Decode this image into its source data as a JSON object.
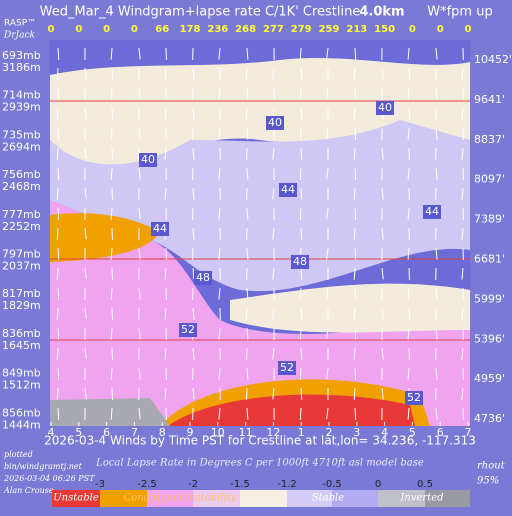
{
  "header": {
    "title": "Wed_Mar_4 Windgram+lapse rate C/1K'  Crestline",
    "crest": "4.0km",
    "unit": "W*fpm up",
    "brand": "RASP™",
    "author": "DrJack"
  },
  "chart_data": {
    "type": "windgram",
    "wstar": [
      0,
      0,
      0,
      0,
      66,
      178,
      236,
      268,
      277,
      279,
      259,
      213,
      150,
      0,
      0,
      0
    ],
    "categories": [
      "4",
      "5",
      "6",
      "7",
      "8",
      "9",
      "10",
      "11",
      "12",
      "1",
      "2",
      "3",
      "4",
      "5",
      "6",
      "7"
    ],
    "x_label": "2026-03-4 Winds by Time PST for Crestline at lat,lon= 34.236, -117.313",
    "levels_left": [
      {
        "mb": "693mb",
        "m": "3186m"
      },
      {
        "mb": "714mb",
        "m": "2939m"
      },
      {
        "mb": "735mb",
        "m": "2694m"
      },
      {
        "mb": "756mb",
        "m": "2468m"
      },
      {
        "mb": "777mb",
        "m": "2252m"
      },
      {
        "mb": "797mb",
        "m": "2037m"
      },
      {
        "mb": "817mb",
        "m": "1829m"
      },
      {
        "mb": "836mb",
        "m": "1645m"
      },
      {
        "mb": "849mb",
        "m": "1512m"
      },
      {
        "mb": "856mb",
        "m": "1444m"
      }
    ],
    "levels_right": [
      "10452'",
      "9641'",
      "8837'",
      "8097'",
      "7389'",
      "6681'",
      "5999'",
      "5396'",
      "4959'",
      "4736'"
    ],
    "contour_labels": [
      40,
      40,
      40,
      44,
      44,
      44,
      48,
      48,
      52,
      52,
      52
    ],
    "colorbar": {
      "title": "Local Lapse Rate in Degrees C per 1000ft  4710ft asl model base",
      "ticks": [
        -3,
        -2.5,
        -2,
        -1.5,
        -1.2,
        -0.5,
        0,
        0.5
      ],
      "colors": [
        "#e83838",
        "#f0a000",
        "#f2a4f2",
        "#ecccf2",
        "#f5eee2",
        "#d4ccf6",
        "#b4acf2",
        "#c0c0c8",
        "#9a9aa2"
      ],
      "regions": [
        "Unstable",
        "Conditional Instability",
        "Stable",
        "Inverted"
      ]
    }
  },
  "footer": {
    "plotted": "plotted",
    "site": "bin/windgramtj.net",
    "stamp": "2026-03-04 06:26 PST",
    "user": "Alan Crouse",
    "rh": "rhout",
    "rh_value": "95%"
  }
}
